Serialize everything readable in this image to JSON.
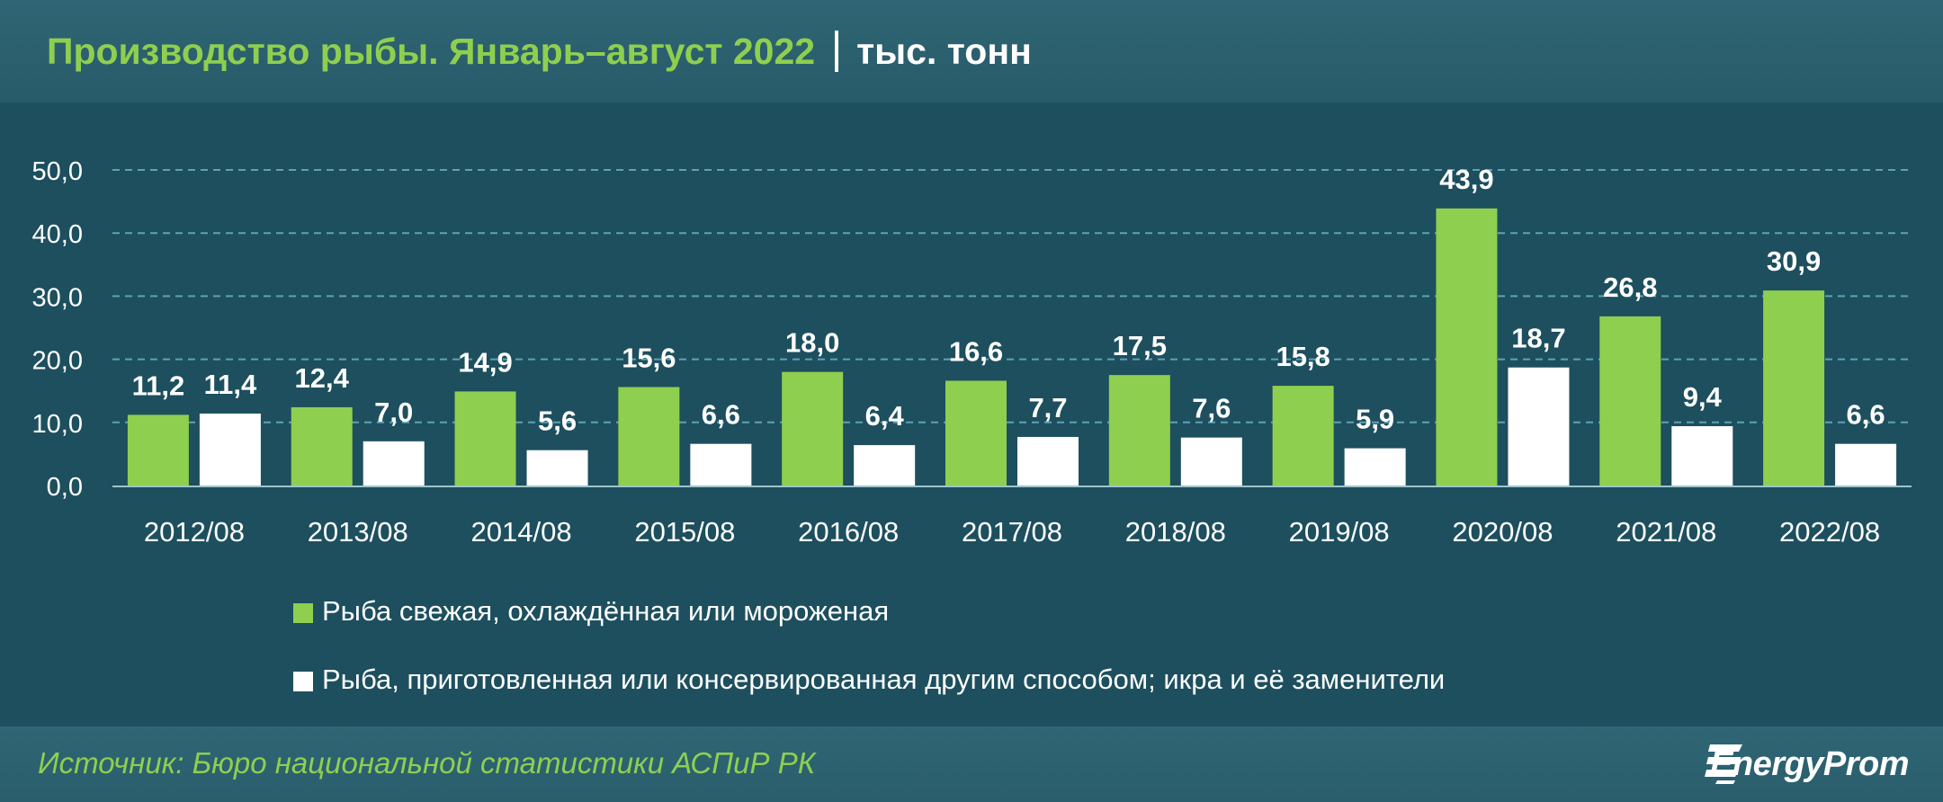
{
  "header": {
    "title": "Производство рыбы. Январь–август 2022",
    "unit": "тыс. тонн"
  },
  "colors": {
    "background": "#1d4f5e",
    "series1": "#8fcf4f",
    "series2": "#ffffff",
    "grid": "#5fa3b3"
  },
  "chart_data": {
    "type": "bar",
    "categories": [
      "2012/08",
      "2013/08",
      "2014/08",
      "2015/08",
      "2016/08",
      "2017/08",
      "2018/08",
      "2019/08",
      "2020/08",
      "2021/08",
      "2022/08"
    ],
    "series": [
      {
        "name": "Рыба свежая, охлаждённая или мороженая",
        "values": [
          11.2,
          12.4,
          14.9,
          15.6,
          18.0,
          16.6,
          17.5,
          15.8,
          43.9,
          26.8,
          30.9
        ],
        "labels": [
          "11,2",
          "12,4",
          "14,9",
          "15,6",
          "18,0",
          "16,6",
          "17,5",
          "15,8",
          "43,9",
          "26,8",
          "30,9"
        ]
      },
      {
        "name": "Рыба, приготовленная или консервированная другим способом; икра и её заменители",
        "values": [
          11.4,
          7.0,
          5.6,
          6.6,
          6.4,
          7.7,
          7.6,
          5.9,
          18.7,
          9.4,
          6.6
        ],
        "labels": [
          "11,4",
          "7,0",
          "5,6",
          "6,6",
          "6,4",
          "7,7",
          "7,6",
          "5,9",
          "18,7",
          "9,4",
          "6,6"
        ]
      }
    ],
    "yticks": [
      0,
      10,
      20,
      30,
      40,
      50
    ],
    "ytick_labels": [
      "0,0",
      "10,0",
      "20,0",
      "30,0",
      "40,0",
      "50,0"
    ],
    "ylim": [
      0,
      50
    ],
    "grid": true,
    "legend_position": "bottom"
  },
  "footer": {
    "source": "Источник: Бюро национальной статистики АСПиР РК",
    "logo_text": "EnergyProm"
  }
}
